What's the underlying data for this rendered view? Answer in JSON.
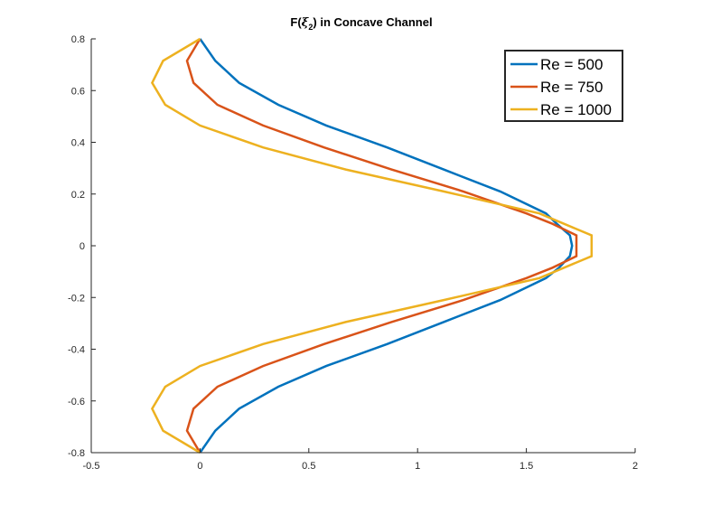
{
  "chart_data": {
    "type": "line",
    "title_main": "F(",
    "title_symbol": "ξ",
    "title_subscript": "2",
    "title_rest": ") in Concave Channel",
    "xlabel": "",
    "ylabel": "",
    "xlim": [
      -0.5,
      2
    ],
    "ylim": [
      -0.8,
      0.8
    ],
    "xticks": [
      -0.5,
      0,
      0.5,
      1,
      1.5,
      2
    ],
    "xtick_labels": [
      "-0.5",
      "0",
      "0.5",
      "1",
      "1.5",
      "2"
    ],
    "yticks": [
      -0.8,
      -0.6,
      -0.4,
      -0.2,
      0,
      0.2,
      0.4,
      0.6,
      0.8
    ],
    "ytick_labels": [
      "-0.8",
      "-0.6",
      "-0.4",
      "-0.2",
      "0",
      "0.2",
      "0.4",
      "0.6",
      "0.8"
    ],
    "grid": false,
    "legend_location": "top-right",
    "series": [
      {
        "name": "Re = 500",
        "color": "#0072BD",
        "points": [
          [
            0.0,
            0.8
          ],
          [
            0.07,
            0.715
          ],
          [
            0.18,
            0.63
          ],
          [
            0.36,
            0.545
          ],
          [
            0.58,
            0.465
          ],
          [
            0.86,
            0.38
          ],
          [
            1.12,
            0.295
          ],
          [
            1.38,
            0.21
          ],
          [
            1.59,
            0.125
          ],
          [
            1.64,
            0.085
          ],
          [
            1.7,
            0.04
          ],
          [
            1.71,
            0.0
          ],
          [
            1.7,
            -0.04
          ],
          [
            1.65,
            -0.085
          ],
          [
            1.59,
            -0.125
          ],
          [
            1.38,
            -0.21
          ],
          [
            1.12,
            -0.295
          ],
          [
            0.86,
            -0.38
          ],
          [
            0.58,
            -0.465
          ],
          [
            0.36,
            -0.545
          ],
          [
            0.18,
            -0.63
          ],
          [
            0.07,
            -0.715
          ],
          [
            0.0,
            -0.8
          ]
        ]
      },
      {
        "name": "Re = 750",
        "color": "#D95319",
        "points": [
          [
            0.0,
            0.8
          ],
          [
            -0.06,
            0.715
          ],
          [
            -0.03,
            0.63
          ],
          [
            0.08,
            0.545
          ],
          [
            0.29,
            0.465
          ],
          [
            0.57,
            0.38
          ],
          [
            0.88,
            0.295
          ],
          [
            1.21,
            0.21
          ],
          [
            1.5,
            0.125
          ],
          [
            1.62,
            0.085
          ],
          [
            1.73,
            0.04
          ],
          [
            1.73,
            0.0
          ],
          [
            1.73,
            -0.04
          ],
          [
            1.62,
            -0.085
          ],
          [
            1.5,
            -0.125
          ],
          [
            1.21,
            -0.21
          ],
          [
            0.88,
            -0.295
          ],
          [
            0.57,
            -0.38
          ],
          [
            0.29,
            -0.465
          ],
          [
            0.08,
            -0.545
          ],
          [
            -0.03,
            -0.63
          ],
          [
            -0.06,
            -0.715
          ],
          [
            0.0,
            -0.8
          ]
        ]
      },
      {
        "name": "Re = 1000",
        "color": "#EDB120",
        "points": [
          [
            0.0,
            0.8
          ],
          [
            -0.17,
            0.715
          ],
          [
            -0.22,
            0.63
          ],
          [
            -0.16,
            0.545
          ],
          [
            0.0,
            0.465
          ],
          [
            0.29,
            0.38
          ],
          [
            0.67,
            0.295
          ],
          [
            1.12,
            0.21
          ],
          [
            1.56,
            0.125
          ],
          [
            1.8,
            0.04
          ],
          [
            1.8,
            -0.04
          ],
          [
            1.56,
            -0.125
          ],
          [
            1.12,
            -0.21
          ],
          [
            0.67,
            -0.295
          ],
          [
            0.29,
            -0.38
          ],
          [
            0.0,
            -0.465
          ],
          [
            -0.16,
            -0.545
          ],
          [
            -0.22,
            -0.63
          ],
          [
            -0.17,
            -0.715
          ],
          [
            0.0,
            -0.8
          ]
        ]
      }
    ]
  }
}
